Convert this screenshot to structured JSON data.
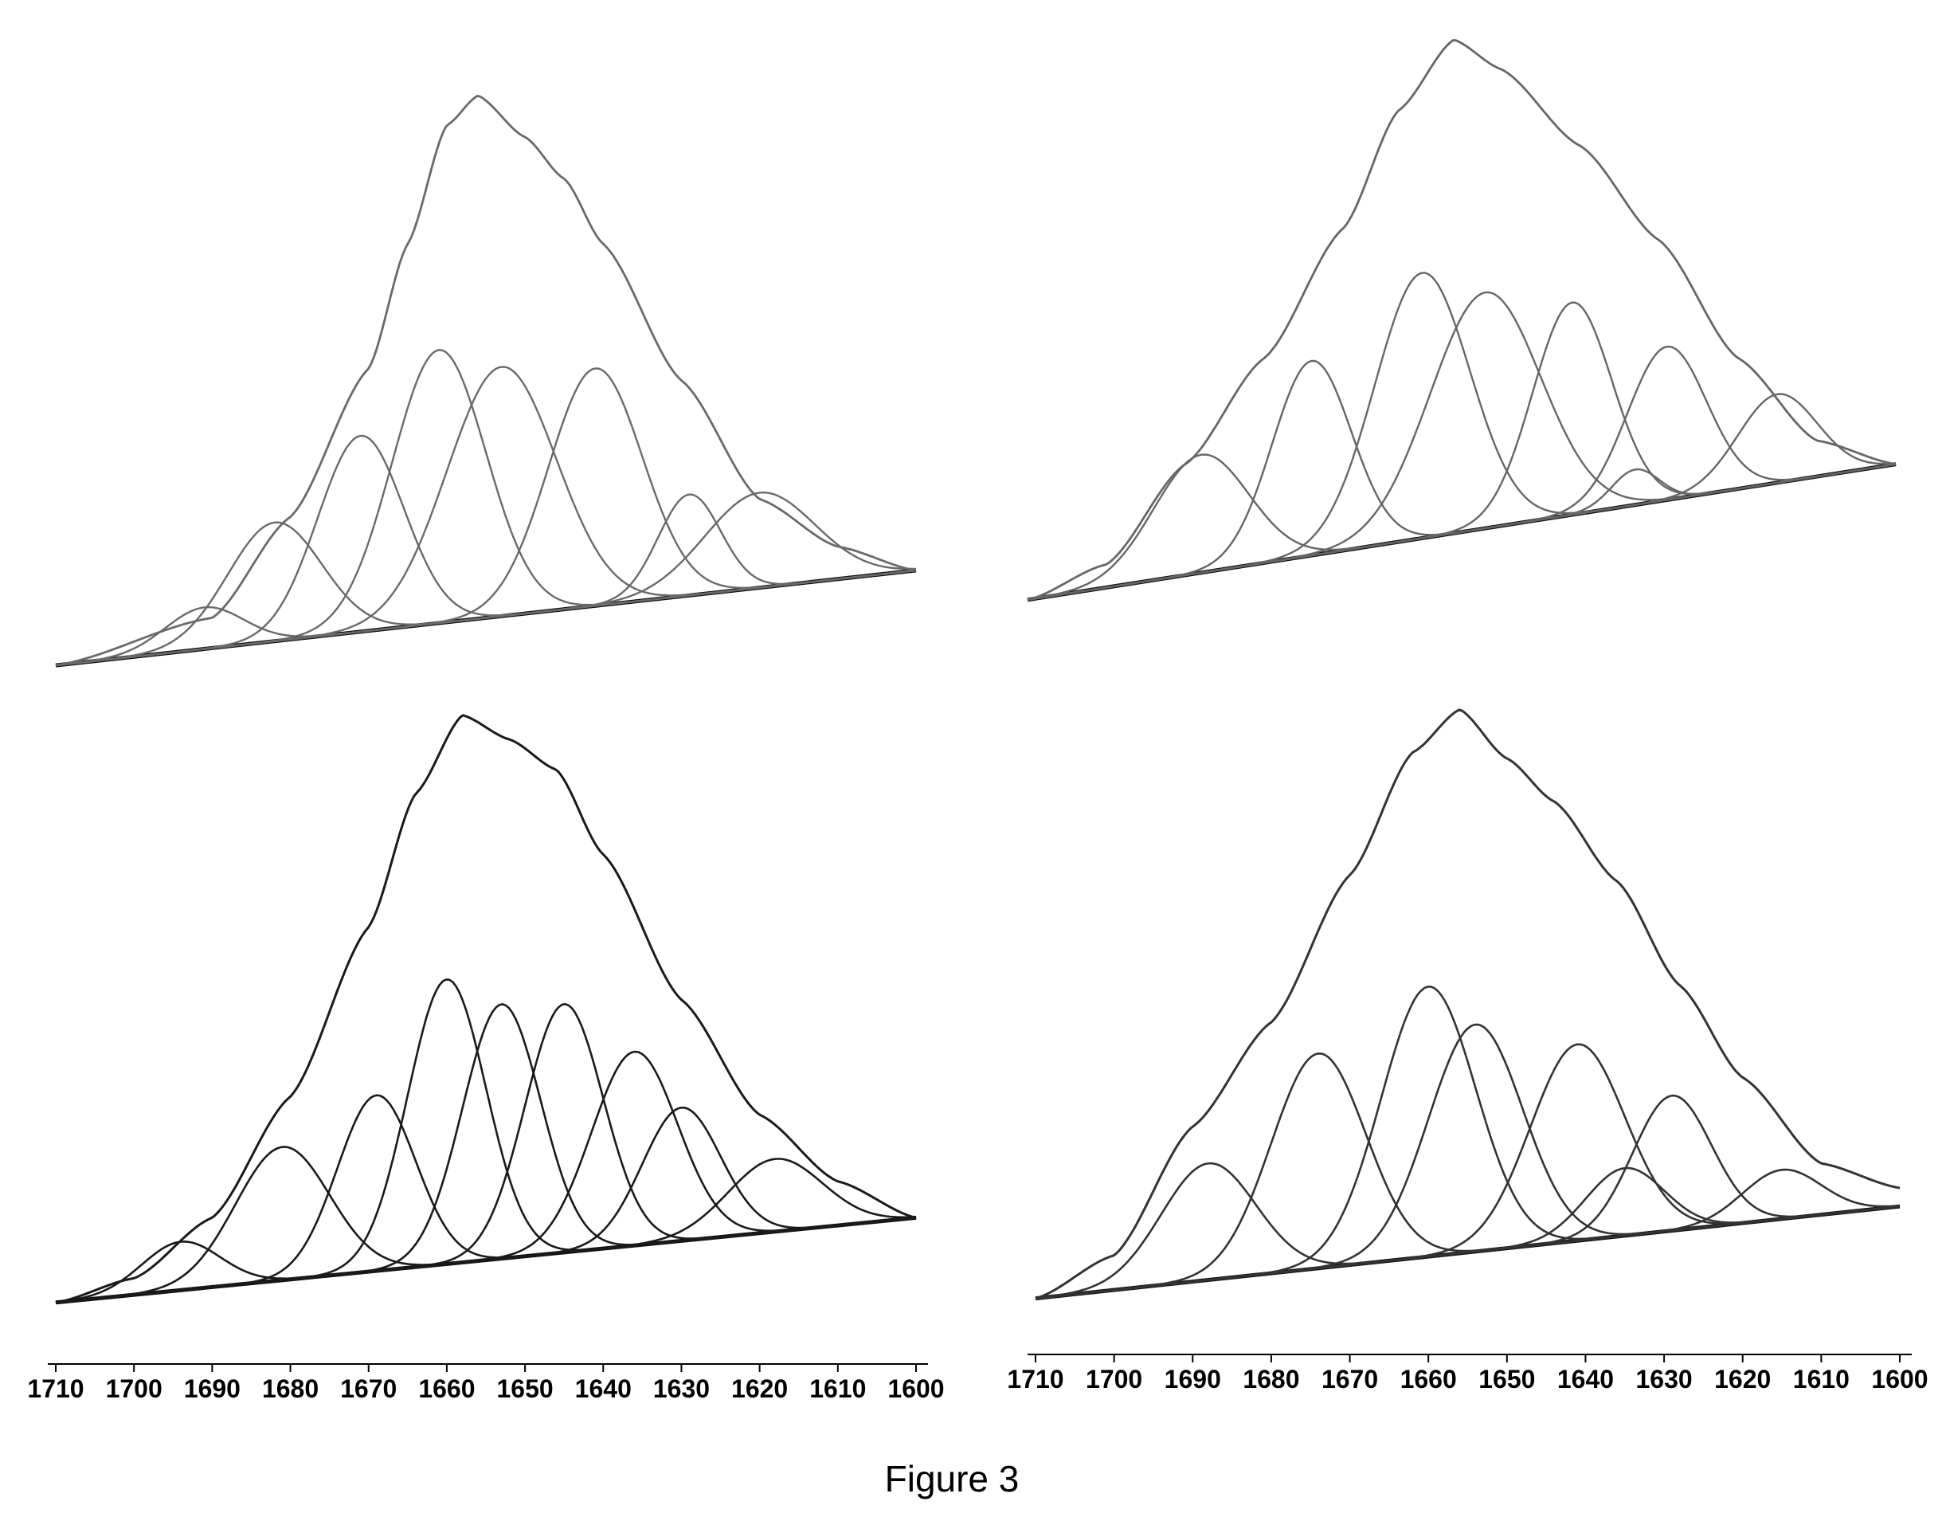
{
  "figure": {
    "caption": "Figure 3"
  },
  "chart_data": [
    {
      "type": "line",
      "panel": "top-left",
      "x_direction": "descending",
      "xlim": [
        1710,
        1600
      ],
      "x_ticks": [
        1710,
        1700,
        1690,
        1680,
        1670,
        1660,
        1650,
        1640,
        1630,
        1620,
        1610,
        1600
      ],
      "x_tick_labels_shown": false,
      "ylim": [
        0,
        1
      ],
      "baseline": {
        "y_at_1710": 0.02,
        "y_at_1600": 0.18
      },
      "envelope": {
        "x": [
          1710,
          1690,
          1680,
          1670,
          1665,
          1660,
          1656,
          1650,
          1645,
          1640,
          1630,
          1620,
          1610,
          1600
        ],
        "y": [
          0.02,
          0.1,
          0.27,
          0.52,
          0.73,
          0.93,
          0.98,
          0.91,
          0.84,
          0.73,
          0.5,
          0.3,
          0.22,
          0.18
        ]
      },
      "components": [
        {
          "center": 1691,
          "height": 0.07,
          "width": 5
        },
        {
          "center": 1682,
          "height": 0.2,
          "width": 6
        },
        {
          "center": 1671,
          "height": 0.33,
          "width": 5.5
        },
        {
          "center": 1661,
          "height": 0.46,
          "width": 6
        },
        {
          "center": 1653,
          "height": 0.42,
          "width": 7
        },
        {
          "center": 1641,
          "height": 0.4,
          "width": 6
        },
        {
          "center": 1629,
          "height": 0.17,
          "width": 4
        },
        {
          "center": 1620,
          "height": 0.16,
          "width": 7
        }
      ],
      "grid": false
    },
    {
      "type": "line",
      "panel": "top-right",
      "x_direction": "descending",
      "xlim": [
        1710,
        1600
      ],
      "x_ticks": [
        1710,
        1700,
        1690,
        1680,
        1670,
        1660,
        1650,
        1640,
        1630,
        1620,
        1610,
        1600
      ],
      "x_tick_labels_shown": false,
      "ylim": [
        0,
        1
      ],
      "baseline": {
        "y_at_1710": 0.03,
        "y_at_1600": 0.26
      },
      "envelope": {
        "x": [
          1710,
          1700,
          1690,
          1680,
          1670,
          1663,
          1656,
          1650,
          1640,
          1630,
          1620,
          1610,
          1600
        ],
        "y": [
          0.03,
          0.09,
          0.26,
          0.44,
          0.66,
          0.86,
          0.98,
          0.93,
          0.8,
          0.64,
          0.44,
          0.3,
          0.26
        ]
      },
      "components": [
        {
          "center": 1688,
          "height": 0.2,
          "width": 6
        },
        {
          "center": 1674,
          "height": 0.33,
          "width": 5
        },
        {
          "center": 1660,
          "height": 0.45,
          "width": 6
        },
        {
          "center": 1652,
          "height": 0.4,
          "width": 7
        },
        {
          "center": 1641,
          "height": 0.36,
          "width": 5
        },
        {
          "center": 1633,
          "height": 0.06,
          "width": 3
        },
        {
          "center": 1629,
          "height": 0.26,
          "width": 5
        },
        {
          "center": 1615,
          "height": 0.15,
          "width": 5
        }
      ],
      "grid": false
    },
    {
      "type": "line",
      "panel": "bottom-left",
      "x_direction": "descending",
      "xlim": [
        1710,
        1600
      ],
      "x_ticks": [
        1710,
        1700,
        1690,
        1680,
        1670,
        1660,
        1650,
        1640,
        1630,
        1620,
        1610,
        1600
      ],
      "x_tick_labels": [
        "1710",
        "1700",
        "1690",
        "1680",
        "1670",
        "1660",
        "1650",
        "1640",
        "1630",
        "1620",
        "1610",
        "1600"
      ],
      "x_tick_labels_shown": true,
      "ylim": [
        0,
        1
      ],
      "baseline": {
        "y_at_1710": 0.02,
        "y_at_1600": 0.16
      },
      "envelope": {
        "x": [
          1710,
          1700,
          1690,
          1680,
          1670,
          1664,
          1658,
          1652,
          1646,
          1640,
          1630,
          1620,
          1610,
          1600
        ],
        "y": [
          0.02,
          0.06,
          0.16,
          0.36,
          0.64,
          0.86,
          0.99,
          0.95,
          0.9,
          0.76,
          0.52,
          0.33,
          0.22,
          0.16
        ]
      },
      "components": [
        {
          "center": 1694,
          "height": 0.08,
          "width": 5
        },
        {
          "center": 1681,
          "height": 0.22,
          "width": 6
        },
        {
          "center": 1669,
          "height": 0.29,
          "width": 5
        },
        {
          "center": 1660,
          "height": 0.47,
          "width": 5
        },
        {
          "center": 1653,
          "height": 0.42,
          "width": 5
        },
        {
          "center": 1645,
          "height": 0.41,
          "width": 5
        },
        {
          "center": 1636,
          "height": 0.32,
          "width": 5.5
        },
        {
          "center": 1630,
          "height": 0.22,
          "width": 5
        },
        {
          "center": 1618,
          "height": 0.12,
          "width": 6
        }
      ],
      "grid": false
    },
    {
      "type": "line",
      "panel": "bottom-right",
      "x_direction": "descending",
      "xlim": [
        1710,
        1600
      ],
      "x_ticks": [
        1710,
        1700,
        1690,
        1680,
        1670,
        1660,
        1650,
        1640,
        1630,
        1620,
        1610,
        1600
      ],
      "x_tick_labels": [
        "1710",
        "1700",
        "1690",
        "1680",
        "1670",
        "1660",
        "1650",
        "1640",
        "1630",
        "1620",
        "1610",
        "1600"
      ],
      "x_tick_labels_shown": true,
      "ylim": [
        0,
        1
      ],
      "baseline": {
        "y_at_1710": 0.02,
        "y_at_1600": 0.17
      },
      "envelope": {
        "x": [
          1710,
          1700,
          1690,
          1680,
          1670,
          1662,
          1656,
          1650,
          1644,
          1636,
          1628,
          1620,
          1610,
          1600
        ],
        "y": [
          0.02,
          0.09,
          0.3,
          0.47,
          0.71,
          0.91,
          0.98,
          0.9,
          0.83,
          0.7,
          0.53,
          0.38,
          0.24,
          0.2
        ]
      },
      "components": [
        {
          "center": 1688,
          "height": 0.19,
          "width": 6
        },
        {
          "center": 1674,
          "height": 0.35,
          "width": 6
        },
        {
          "center": 1660,
          "height": 0.44,
          "width": 6
        },
        {
          "center": 1654,
          "height": 0.37,
          "width": 6
        },
        {
          "center": 1641,
          "height": 0.32,
          "width": 6
        },
        {
          "center": 1635,
          "height": 0.11,
          "width": 5
        },
        {
          "center": 1629,
          "height": 0.22,
          "width": 5
        },
        {
          "center": 1615,
          "height": 0.08,
          "width": 5
        }
      ],
      "grid": false
    }
  ]
}
